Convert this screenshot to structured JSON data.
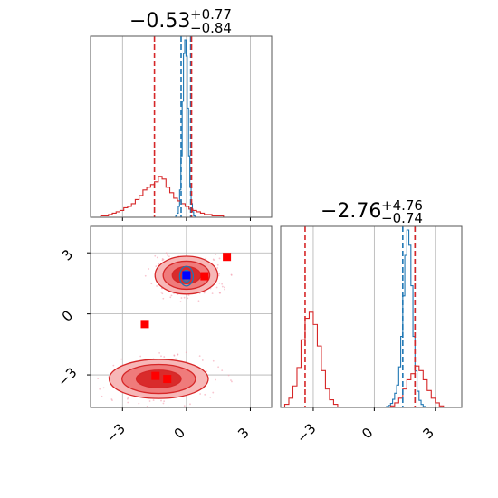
{
  "chart_data": {
    "type": "corner",
    "parameters": 2,
    "colors": {
      "red": "#d62728",
      "blue": "#1f77b4",
      "red_fill_dark": "#d92b2b",
      "red_fill_light": "#f08080",
      "point_red": "#ff0000",
      "point_blue": "#0000ff",
      "grid": "#b0b0b0"
    },
    "titles": [
      {
        "value": "−0.53",
        "plus": "+0.77",
        "minus": "−0.84"
      },
      {
        "value": "−2.76",
        "plus": "+4.76",
        "minus": "−0.74"
      }
    ],
    "axes_ranges": {
      "param0": [
        -4.5,
        4.0
      ],
      "param1": [
        -4.6,
        4.3
      ]
    },
    "ticks": {
      "x_labels": [
        "−3",
        "0",
        "3"
      ],
      "y_labels": [
        "3",
        "0",
        "−3"
      ],
      "x_values": [
        -3,
        0,
        3
      ],
      "y_values": [
        3,
        0,
        -3
      ]
    },
    "grid": true,
    "marginal_0": {
      "red_vlines": [
        -1.5,
        0.24
      ],
      "blue_vlines": [
        -0.25,
        0.2
      ],
      "red_hist": {
        "bin_edges_start": -4.2,
        "bin_width": 0.18,
        "counts": [
          0,
          1,
          1,
          2,
          3,
          4,
          5,
          7,
          8,
          10,
          13,
          16,
          20,
          22,
          24,
          26,
          30,
          28,
          22,
          18,
          14,
          12,
          10,
          8,
          6,
          5,
          4,
          3,
          2,
          2,
          1,
          1,
          1,
          0
        ]
      },
      "blue_hist": {
        "bin_edges_start": -0.5,
        "bin_width": 0.06,
        "counts": [
          1,
          3,
          8,
          20,
          45,
          85,
          120,
          130,
          118,
          80,
          45,
          22,
          10,
          4,
          1
        ]
      }
    },
    "marginal_1": {
      "red_vlines": [
        -3.4,
        2.0
      ],
      "blue_vlines": [
        1.4,
        2.0
      ],
      "red_hist": {
        "bin_edges_start": -4.4,
        "bin_width": 0.2,
        "counts": [
          2,
          6,
          14,
          26,
          44,
          58,
          62,
          54,
          40,
          24,
          12,
          5,
          2,
          0,
          0,
          0,
          0,
          0,
          0,
          0,
          0,
          0,
          0,
          0,
          0,
          0,
          1,
          3,
          6,
          12,
          18,
          22,
          27,
          24,
          18,
          11,
          6,
          3,
          1
        ]
      },
      "blue_hist": {
        "bin_edges_start": 0.6,
        "bin_width": 0.1,
        "counts": [
          1,
          2,
          4,
          8,
          14,
          22,
          40,
          70,
          110,
          150,
          175,
          160,
          120,
          70,
          36,
          16,
          7,
          3,
          1
        ]
      }
    },
    "joint_red_modes": [
      {
        "center": [
          0.0,
          1.9
        ],
        "spread": [
          0.95,
          0.6
        ]
      },
      {
        "center": [
          -1.3,
          -3.2
        ],
        "spread": [
          1.5,
          0.62
        ]
      }
    ],
    "joint_blue_mode": {
      "center": [
        0.0,
        1.85
      ],
      "spread": [
        0.32,
        0.48
      ]
    },
    "red_points": [
      {
        "x": 1.9,
        "y": 2.8
      },
      {
        "x": 0.85,
        "y": 1.85
      },
      {
        "x": -1.95,
        "y": -0.5
      },
      {
        "x": -1.45,
        "y": -3.05
      },
      {
        "x": -0.9,
        "y": -3.2
      }
    ],
    "blue_point": {
      "x": 0.0,
      "y": 1.9
    }
  }
}
